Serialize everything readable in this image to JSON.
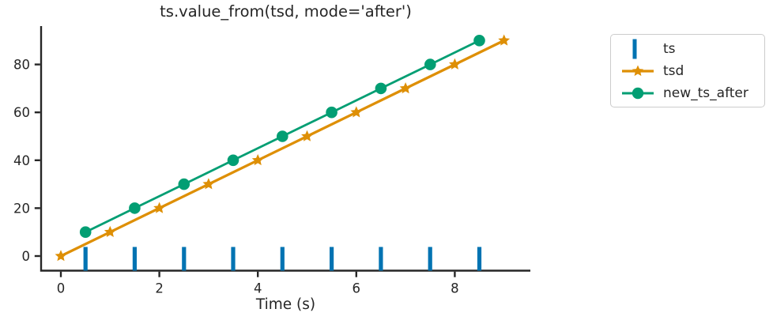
{
  "figure": {
    "background": "#ffffff",
    "text_color": "#262626",
    "spine_color": "#262626"
  },
  "chart_data": {
    "type": "line",
    "title": "ts.value_from(tsd, mode='after')",
    "xlabel": "Time (s)",
    "ylabel": "",
    "xlim": [
      -0.45,
      9.55
    ],
    "ylim": [
      -6.5,
      96
    ],
    "xticks": [
      0,
      2,
      4,
      6,
      8
    ],
    "yticks": [
      0,
      20,
      40,
      60,
      80
    ],
    "grid": false,
    "legend_position": "outside-right",
    "series": [
      {
        "name": "ts",
        "type": "event-ticks",
        "marker": "vline",
        "color": "#0173b2",
        "x": [
          0.5,
          1.5,
          2.5,
          3.5,
          4.5,
          5.5,
          6.5,
          7.5,
          8.5
        ],
        "y_center": 0
      },
      {
        "name": "tsd",
        "type": "line",
        "marker": "star",
        "color": "#de8f05",
        "x": [
          0,
          1,
          2,
          3,
          4,
          5,
          6,
          7,
          8,
          9
        ],
        "y": [
          0,
          10,
          20,
          30,
          40,
          50,
          60,
          70,
          80,
          90
        ]
      },
      {
        "name": "new_ts_after",
        "type": "line",
        "marker": "circle",
        "color": "#029e73",
        "x": [
          0.5,
          1.5,
          2.5,
          3.5,
          4.5,
          5.5,
          6.5,
          7.5,
          8.5
        ],
        "y": [
          10,
          20,
          30,
          40,
          50,
          60,
          70,
          80,
          90
        ]
      }
    ]
  },
  "legend": {
    "items": [
      {
        "label": "ts",
        "marker": "vline",
        "color": "#0173b2"
      },
      {
        "label": "tsd",
        "marker": "line-star",
        "color": "#de8f05"
      },
      {
        "label": "new_ts_after",
        "marker": "line-circle",
        "color": "#029e73"
      }
    ]
  }
}
